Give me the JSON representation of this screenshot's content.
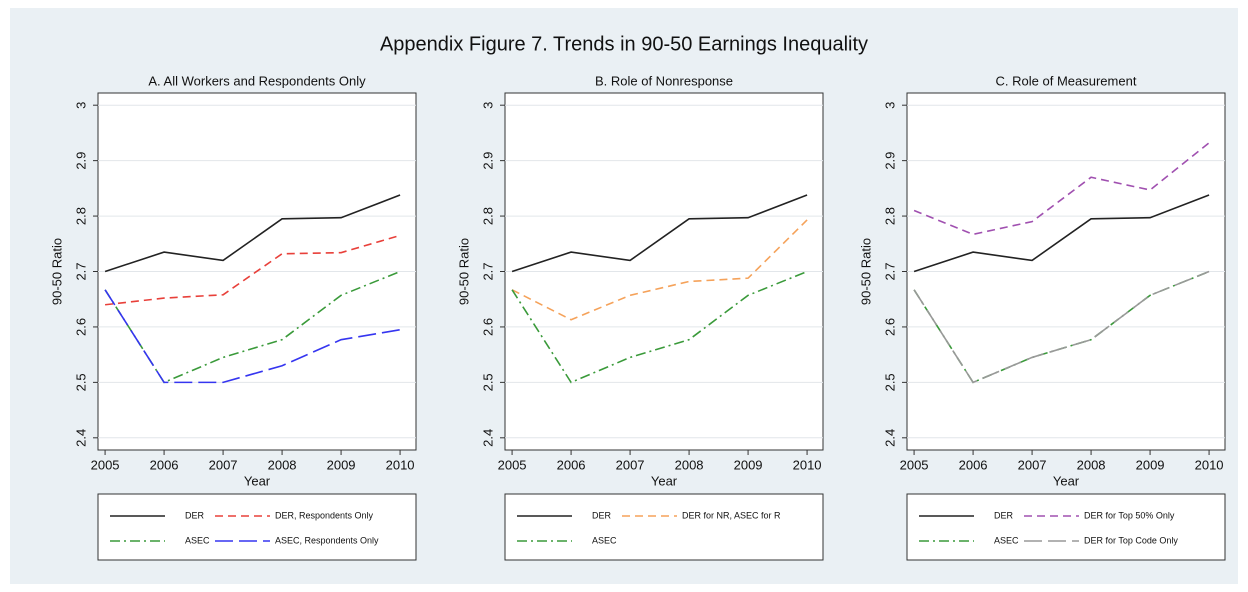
{
  "title": "Appendix Figure 7. Trends in 90-50 Earnings Inequality",
  "chart_data": [
    {
      "type": "line",
      "title": "A. All Workers and Respondents Only",
      "xlabel": "Year",
      "ylabel": "90-50 Ratio",
      "x": [
        2005,
        2006,
        2007,
        2008,
        2009,
        2010
      ],
      "series": [
        {
          "name": "DER",
          "color": "#222222",
          "dash": "solid",
          "values": [
            2.7,
            2.735,
            2.72,
            2.795,
            2.797,
            2.838
          ]
        },
        {
          "name": "DER, Respondents Only",
          "color": "#e8403a",
          "dash": "dash",
          "values": [
            2.64,
            2.652,
            2.658,
            2.732,
            2.734,
            2.765
          ]
        },
        {
          "name": "ASEC",
          "color": "#3a9a3a",
          "dash": "dashdot",
          "values": [
            2.667,
            2.5,
            2.545,
            2.577,
            2.657,
            2.7
          ]
        },
        {
          "name": "ASEC, Respondents Only",
          "color": "#3535f0",
          "dash": "longdash",
          "values": [
            2.667,
            2.5,
            2.5,
            2.53,
            2.577,
            2.595
          ]
        }
      ],
      "xlim": [
        2004.88,
        2010.27
      ],
      "xticks": [
        2005,
        2006,
        2007,
        2008,
        2009,
        2010
      ],
      "ylim": [
        2.378,
        3.022
      ],
      "yticks": [
        2.4,
        2.5,
        2.6,
        2.7,
        2.8,
        2.9,
        3
      ],
      "grid": true
    },
    {
      "type": "line",
      "title": "B. Role of Nonresponse",
      "xlabel": "Year",
      "ylabel": "90-50 Ratio",
      "x": [
        2005,
        2006,
        2007,
        2008,
        2009,
        2010
      ],
      "series": [
        {
          "name": "DER",
          "color": "#222222",
          "dash": "solid",
          "values": [
            2.7,
            2.735,
            2.72,
            2.795,
            2.797,
            2.838
          ]
        },
        {
          "name": "DER for NR, ASEC for R",
          "color": "#f5a25a",
          "dash": "dash",
          "values": [
            2.667,
            2.613,
            2.657,
            2.682,
            2.688,
            2.793
          ]
        },
        {
          "name": "ASEC",
          "color": "#3a9a3a",
          "dash": "dashdot",
          "values": [
            2.667,
            2.5,
            2.545,
            2.577,
            2.657,
            2.7
          ]
        }
      ],
      "xlim": [
        2004.88,
        2010.27
      ],
      "xticks": [
        2005,
        2006,
        2007,
        2008,
        2009,
        2010
      ],
      "ylim": [
        2.378,
        3.022
      ],
      "yticks": [
        2.4,
        2.5,
        2.6,
        2.7,
        2.8,
        2.9,
        3
      ],
      "grid": true
    },
    {
      "type": "line",
      "title": "C. Role of Measurement",
      "xlabel": "Year",
      "ylabel": "90-50 Ratio",
      "x": [
        2005,
        2006,
        2007,
        2008,
        2009,
        2010
      ],
      "series": [
        {
          "name": "DER",
          "color": "#222222",
          "dash": "solid",
          "values": [
            2.7,
            2.735,
            2.72,
            2.795,
            2.797,
            2.838
          ]
        },
        {
          "name": "DER for Top 50% Only",
          "color": "#a050b0",
          "dash": "dash",
          "values": [
            2.81,
            2.767,
            2.79,
            2.87,
            2.847,
            2.932
          ]
        },
        {
          "name": "ASEC",
          "color": "#3a9a3a",
          "dash": "dashdot",
          "values": [
            2.667,
            2.5,
            2.545,
            2.577,
            2.657,
            2.7
          ]
        },
        {
          "name": "DER for Top Code Only",
          "color": "#999999",
          "dash": "longdash",
          "values": [
            2.667,
            2.5,
            2.545,
            2.577,
            2.657,
            2.7
          ]
        }
      ],
      "xlim": [
        2004.88,
        2010.27
      ],
      "xticks": [
        2005,
        2006,
        2007,
        2008,
        2009,
        2010
      ],
      "ylim": [
        2.378,
        3.022
      ],
      "yticks": [
        2.4,
        2.5,
        2.6,
        2.7,
        2.8,
        2.9,
        3
      ],
      "grid": true
    }
  ]
}
